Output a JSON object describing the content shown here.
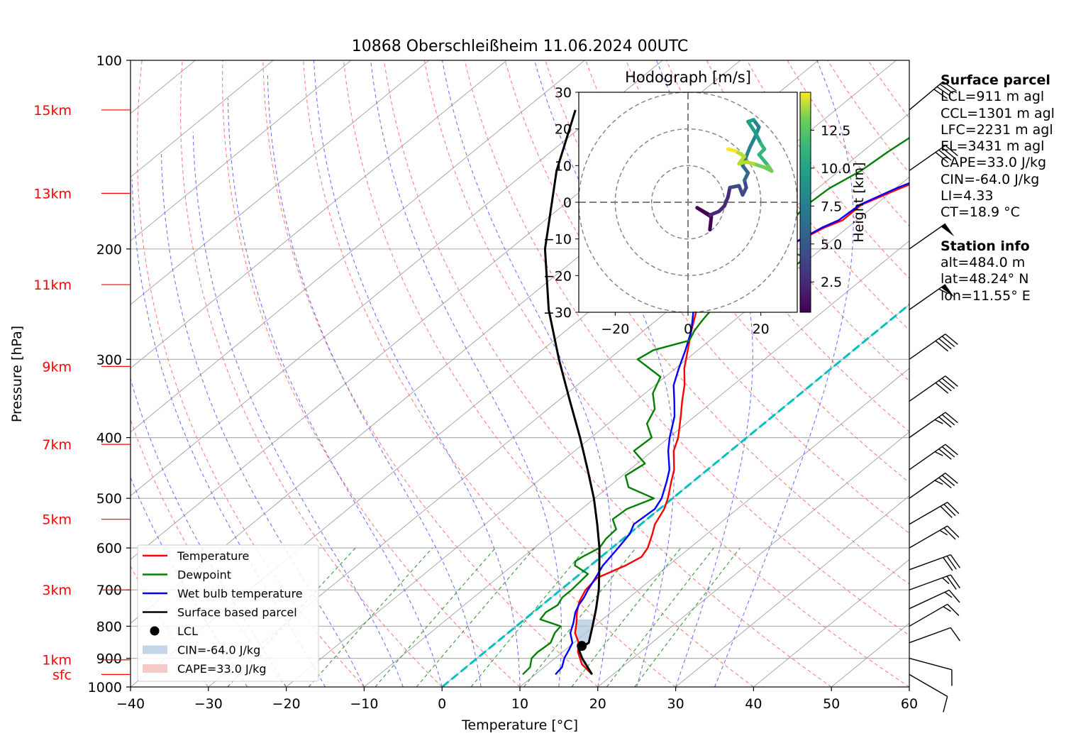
{
  "chart_data": {
    "type": "line",
    "title": "10868 Oberschleißheim 11.06.2024 00UTC",
    "xlabel": "Temperature [°C]",
    "ylabel": "Pressure [hPa]",
    "xlim": [
      -40,
      60
    ],
    "ylim": [
      1000,
      100
    ],
    "yscale": "log",
    "x_ticks": [
      -40,
      -30,
      -20,
      -10,
      0,
      10,
      20,
      30,
      40,
      50,
      60
    ],
    "y_ticks": [
      100,
      200,
      300,
      400,
      500,
      600,
      700,
      800,
      900,
      1000
    ],
    "grid": true,
    "legend_position": "lower-left",
    "height_labels": [
      {
        "label": "sfc",
        "p": 955
      },
      {
        "label": "1km",
        "p": 905
      },
      {
        "label": "3km",
        "p": 700
      },
      {
        "label": "5km",
        "p": 540
      },
      {
        "label": "7km",
        "p": 410
      },
      {
        "label": "9km",
        "p": 308
      },
      {
        "label": "11km",
        "p": 228
      },
      {
        "label": "13km",
        "p": 163
      },
      {
        "label": "15km",
        "p": 120
      }
    ],
    "legend": [
      {
        "label": "Temperature",
        "color": "#ff0000",
        "kind": "line"
      },
      {
        "label": "Dewpoint",
        "color": "#008000",
        "kind": "line"
      },
      {
        "label": "Wet bulb temperature",
        "color": "#0000ff",
        "kind": "line"
      },
      {
        "label": "Surface based parcel",
        "color": "#000000",
        "kind": "line"
      },
      {
        "label": "LCL",
        "color": "#000000",
        "kind": "marker"
      },
      {
        "label": "CIN=-64.0 J/kg",
        "color": "#aec8e0",
        "kind": "patch"
      },
      {
        "label": "CAPE=33.0 J/kg",
        "color": "#f4b8b8",
        "kind": "patch"
      }
    ],
    "series": [
      {
        "name": "Temperature",
        "color": "#ff0000",
        "points": [
          [
            955,
            17.3
          ],
          [
            920,
            14.4
          ],
          [
            880,
            12.0
          ],
          [
            850,
            10.6
          ],
          [
            820,
            8.6
          ],
          [
            790,
            7.2
          ],
          [
            760,
            5.6
          ],
          [
            730,
            4.2
          ],
          [
            700,
            3.2
          ],
          [
            670,
            2.8
          ],
          [
            640,
            4.5
          ],
          [
            620,
            5.2
          ],
          [
            600,
            4.6
          ],
          [
            570,
            3.0
          ],
          [
            550,
            1.8
          ],
          [
            520,
            0.6
          ],
          [
            500,
            -0.6
          ],
          [
            470,
            -2.8
          ],
          [
            450,
            -4.3
          ],
          [
            420,
            -7.3
          ],
          [
            400,
            -8.8
          ],
          [
            370,
            -11.8
          ],
          [
            350,
            -14.0
          ],
          [
            330,
            -16.2
          ],
          [
            310,
            -18.9
          ],
          [
            290,
            -21.3
          ],
          [
            270,
            -23.9
          ],
          [
            250,
            -26.5
          ],
          [
            235,
            -28.4
          ],
          [
            220,
            -30.5
          ],
          [
            210,
            -31.3
          ],
          [
            205,
            -29.8
          ],
          [
            200,
            -26.4
          ],
          [
            195,
            -24.3
          ],
          [
            185,
            -23.0
          ],
          [
            180,
            -21.8
          ],
          [
            170,
            -21.8
          ],
          [
            160,
            -19.4
          ],
          [
            150,
            -16.5
          ],
          [
            140,
            -13.5
          ],
          [
            130,
            -11.5
          ],
          [
            125,
            -10.7
          ],
          [
            120,
            -10.0
          ],
          [
            117,
            -9.5
          ],
          [
            113,
            -8.8
          ]
        ]
      },
      {
        "name": "Wet bulb temperature",
        "color": "#0000ff",
        "points": [
          [
            955,
            12.6
          ],
          [
            930,
            12.3
          ],
          [
            900,
            11.2
          ],
          [
            870,
            10.4
          ],
          [
            850,
            9.8
          ],
          [
            820,
            8.0
          ],
          [
            790,
            6.8
          ],
          [
            760,
            5.4
          ],
          [
            740,
            4.7
          ],
          [
            720,
            4.2
          ],
          [
            700,
            3.5
          ],
          [
            670,
            2.6
          ],
          [
            640,
            1.6
          ],
          [
            600,
            0.8
          ],
          [
            570,
            0.1
          ],
          [
            550,
            -0.9
          ],
          [
            520,
            -0.6
          ],
          [
            500,
            -1.4
          ],
          [
            470,
            -3.4
          ],
          [
            450,
            -4.9
          ],
          [
            420,
            -8.0
          ],
          [
            400,
            -9.9
          ],
          [
            370,
            -12.6
          ],
          [
            350,
            -15.0
          ],
          [
            330,
            -17.6
          ],
          [
            310,
            -19.6
          ],
          [
            290,
            -21.6
          ],
          [
            270,
            -23.9
          ],
          [
            250,
            -26.9
          ],
          [
            235,
            -28.8
          ],
          [
            220,
            -30.5
          ],
          [
            210,
            -31.4
          ],
          [
            205,
            -29.8
          ],
          [
            200,
            -26.4
          ],
          [
            195,
            -24.4
          ],
          [
            185,
            -23.3
          ],
          [
            180,
            -22.3
          ],
          [
            170,
            -22.0
          ],
          [
            160,
            -19.9
          ],
          [
            150,
            -17.0
          ],
          [
            140,
            -14.1
          ],
          [
            130,
            -12.0
          ],
          [
            125,
            -11.4
          ],
          [
            120,
            -10.9
          ],
          [
            117,
            -10.4
          ],
          [
            113,
            -10.3
          ]
        ]
      },
      {
        "name": "Dewpoint",
        "color": "#008000",
        "points": [
          [
            955,
            8.4
          ],
          [
            930,
            8.2
          ],
          [
            900,
            7.0
          ],
          [
            880,
            6.8
          ],
          [
            850,
            7.0
          ],
          [
            820,
            6.0
          ],
          [
            800,
            5.7
          ],
          [
            780,
            2.0
          ],
          [
            760,
            1.6
          ],
          [
            740,
            2.0
          ],
          [
            720,
            1.4
          ],
          [
            700,
            1.4
          ],
          [
            680,
            1.2
          ],
          [
            660,
            1.0
          ],
          [
            640,
            -2.0
          ],
          [
            630,
            -2.6
          ],
          [
            620,
            -2.4
          ],
          [
            600,
            -1.6
          ],
          [
            580,
            -2.2
          ],
          [
            560,
            -2.4
          ],
          [
            540,
            -4.4
          ],
          [
            520,
            -4.2
          ],
          [
            500,
            -2.4
          ],
          [
            480,
            -7.4
          ],
          [
            460,
            -9.6
          ],
          [
            440,
            -9.0
          ],
          [
            420,
            -12.4
          ],
          [
            400,
            -12.2
          ],
          [
            380,
            -15.0
          ],
          [
            360,
            -16.3
          ],
          [
            340,
            -19.0
          ],
          [
            320,
            -20.6
          ],
          [
            300,
            -26.3
          ],
          [
            290,
            -25.7
          ],
          [
            280,
            -22.6
          ],
          [
            270,
            -23.5
          ],
          [
            260,
            -24.1
          ],
          [
            250,
            -24.6
          ],
          [
            240,
            -25.9
          ],
          [
            230,
            -24.2
          ],
          [
            220,
            -21.2
          ],
          [
            210,
            -20.7
          ],
          [
            205,
            -21.4
          ],
          [
            200,
            -25.9
          ],
          [
            190,
            -28.1
          ],
          [
            180,
            -28.3
          ],
          [
            170,
            -28.8
          ],
          [
            160,
            -28.5
          ],
          [
            150,
            -27.2
          ],
          [
            140,
            -26.7
          ],
          [
            130,
            -25.9
          ],
          [
            125,
            -25.2
          ],
          [
            120,
            -24.6
          ],
          [
            117,
            -24.0
          ]
        ]
      },
      {
        "name": "Surface based parcel",
        "color": "#000000",
        "points": [
          [
            955,
            17.3
          ],
          [
            900,
            13.5
          ],
          [
            870,
            11.6
          ],
          [
            850,
            11.9
          ],
          [
            800,
            9.8
          ],
          [
            750,
            7.5
          ],
          [
            700,
            4.9
          ],
          [
            650,
            1.8
          ],
          [
            600,
            -1.6
          ],
          [
            550,
            -5.6
          ],
          [
            500,
            -10.1
          ],
          [
            450,
            -15.4
          ],
          [
            400,
            -21.4
          ],
          [
            350,
            -28.4
          ],
          [
            300,
            -36.4
          ],
          [
            250,
            -45.5
          ],
          [
            200,
            -55.5
          ],
          [
            150,
            -66.3
          ],
          [
            120,
            -73.4
          ]
        ]
      }
    ],
    "lcl": {
      "p": 860,
      "t": 11.5,
      "label": "LCL"
    },
    "wind_barbs": [
      {
        "p": 955,
        "speed_kt": 10,
        "dir_deg": 300
      },
      {
        "p": 900,
        "speed_kt": 10,
        "dir_deg": 285
      },
      {
        "p": 850,
        "speed_kt": 10,
        "dir_deg": 250
      },
      {
        "p": 800,
        "speed_kt": 15,
        "dir_deg": 240
      },
      {
        "p": 750,
        "speed_kt": 15,
        "dir_deg": 245
      },
      {
        "p": 700,
        "speed_kt": 25,
        "dir_deg": 250
      },
      {
        "p": 650,
        "speed_kt": 30,
        "dir_deg": 250
      },
      {
        "p": 600,
        "speed_kt": 25,
        "dir_deg": 240
      },
      {
        "p": 550,
        "speed_kt": 30,
        "dir_deg": 240
      },
      {
        "p": 500,
        "speed_kt": 35,
        "dir_deg": 235
      },
      {
        "p": 450,
        "speed_kt": 35,
        "dir_deg": 235
      },
      {
        "p": 400,
        "speed_kt": 35,
        "dir_deg": 235
      },
      {
        "p": 350,
        "speed_kt": 40,
        "dir_deg": 235
      },
      {
        "p": 300,
        "speed_kt": 40,
        "dir_deg": 235
      },
      {
        "p": 250,
        "speed_kt": 55,
        "dir_deg": 235
      },
      {
        "p": 200,
        "speed_kt": 50,
        "dir_deg": 235
      },
      {
        "p": 150,
        "speed_kt": 40,
        "dir_deg": 235
      },
      {
        "p": 120,
        "speed_kt": 40,
        "dir_deg": 230
      }
    ],
    "hodograph": {
      "title": "Hodograph [m/s]",
      "xlim": [
        -30,
        30
      ],
      "ylim": [
        -30,
        30
      ],
      "ticks": [
        -20,
        0,
        20
      ],
      "ytick_labels": [
        -30,
        -20,
        -10,
        0,
        10,
        20,
        30
      ],
      "rings": [
        10,
        20,
        30
      ],
      "colorbar_label": "Height [km]",
      "colorbar_ticks": [
        2.5,
        5.0,
        7.5,
        10.0,
        12.5
      ],
      "colorbar_range": [
        0.5,
        15.0
      ],
      "points": [
        {
          "h": 0.5,
          "u": 6.0,
          "v": -7.5
        },
        {
          "h": 0.8,
          "u": 6.4,
          "v": -4.0
        },
        {
          "h": 1.1,
          "u": 2.5,
          "v": -1.5
        },
        {
          "h": 1.4,
          "u": 6.0,
          "v": -3.5
        },
        {
          "h": 1.8,
          "u": 8.5,
          "v": -2.5
        },
        {
          "h": 2.2,
          "u": 10.0,
          "v": -1.0
        },
        {
          "h": 2.6,
          "u": 11.0,
          "v": 1.5
        },
        {
          "h": 3.0,
          "u": 11.5,
          "v": 4.0
        },
        {
          "h": 3.4,
          "u": 14.0,
          "v": 4.5
        },
        {
          "h": 3.9,
          "u": 15.0,
          "v": 2.0
        },
        {
          "h": 4.3,
          "u": 16.0,
          "v": 4.0
        },
        {
          "h": 4.8,
          "u": 15.5,
          "v": 6.0
        },
        {
          "h": 5.2,
          "u": 16.5,
          "v": 8.0
        },
        {
          "h": 5.7,
          "u": 15.0,
          "v": 10.0
        },
        {
          "h": 6.2,
          "u": 16.0,
          "v": 12.5
        },
        {
          "h": 6.7,
          "u": 17.0,
          "v": 15.0
        },
        {
          "h": 7.2,
          "u": 18.5,
          "v": 18.0
        },
        {
          "h": 7.7,
          "u": 19.5,
          "v": 20.5
        },
        {
          "h": 8.2,
          "u": 18.0,
          "v": 22.5
        },
        {
          "h": 8.7,
          "u": 16.5,
          "v": 22.0
        },
        {
          "h": 9.2,
          "u": 18.5,
          "v": 19.0
        },
        {
          "h": 9.7,
          "u": 20.0,
          "v": 16.0
        },
        {
          "h": 10.2,
          "u": 21.0,
          "v": 14.5
        },
        {
          "h": 10.7,
          "u": 19.5,
          "v": 13.0
        },
        {
          "h": 11.2,
          "u": 22.0,
          "v": 10.0
        },
        {
          "h": 11.7,
          "u": 23.0,
          "v": 8.5
        },
        {
          "h": 12.2,
          "u": 21.0,
          "v": 9.5
        },
        {
          "h": 12.6,
          "u": 18.0,
          "v": 10.5
        },
        {
          "h": 13.0,
          "u": 16.0,
          "v": 11.0
        },
        {
          "h": 13.4,
          "u": 14.0,
          "v": 10.5
        },
        {
          "h": 13.8,
          "u": 15.5,
          "v": 12.5
        },
        {
          "h": 14.2,
          "u": 13.0,
          "v": 14.0
        },
        {
          "h": 14.6,
          "u": 11.0,
          "v": 14.5
        }
      ]
    }
  },
  "info": {
    "surface_header": "Surface parcel",
    "lcl": "LCL=911 m agl",
    "ccl": "CCL=1301 m agl",
    "lfc": "LFC=2231 m agl",
    "el": "EL=3431 m agl",
    "cape": "CAPE=33.0 J/kg",
    "cin": "CIN=-64.0 J/kg",
    "li": "LI=4.33",
    "ct": "CT=18.9 °C",
    "station_header": "Station info",
    "alt": "alt=484.0 m",
    "lat": "lat=48.24° N",
    "lon": "lon=11.55° E"
  }
}
